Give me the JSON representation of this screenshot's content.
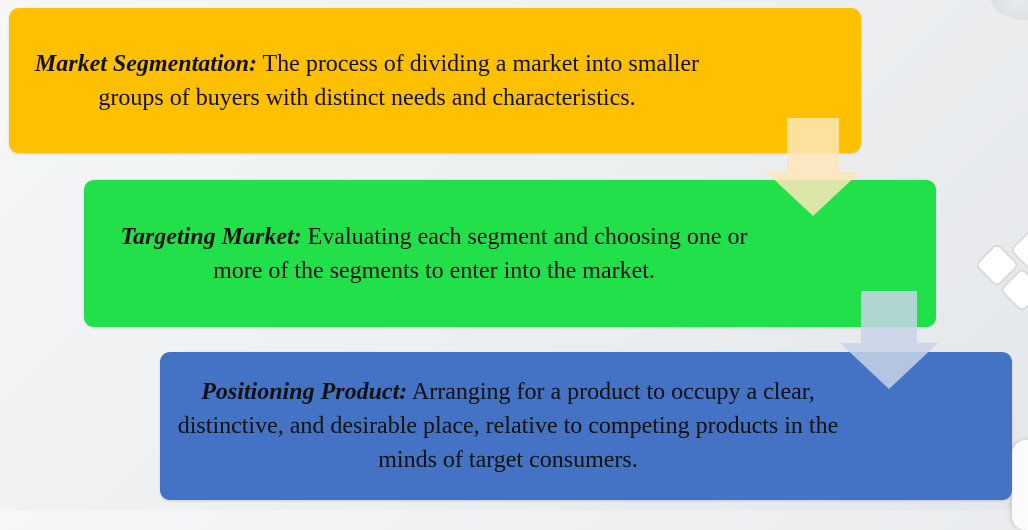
{
  "steps": [
    {
      "term": "Market Segmentation:",
      "description": " The process of dividing  a market into smaller groups of buyers with  distinct needs and characteristics.",
      "color": "#ffc000"
    },
    {
      "term": "Targeting Market:",
      "description": " Evaluating each segment and choosing one or more of the segments to  enter into the market.",
      "color": "#22e04a"
    },
    {
      "term": "Positioning Product:",
      "description": " Arranging for a product to  occupy a clear, distinctive, and desirable  place, relative to competing products in the  minds of target consumers.",
      "color": "#4472c4"
    }
  ],
  "arrows": [
    {
      "color": "#fbe6b8"
    },
    {
      "color": "#c8d4e8"
    }
  ]
}
